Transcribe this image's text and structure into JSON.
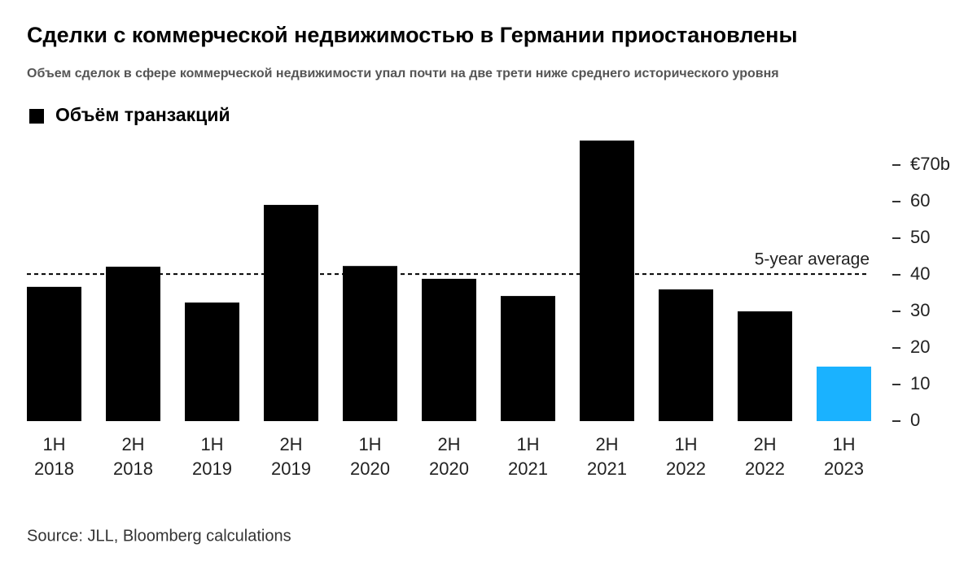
{
  "chart_data": {
    "type": "bar",
    "title": "Сделки с коммерческой недвижимостью в Германии приостановлены",
    "subtitle": "Объем сделок в сфере коммерческой недвижимости упал почти на две трети ниже среднего исторического уровня",
    "source": "Source: JLL, Bloomberg calculations",
    "categories": [
      "1H 2018",
      "2H 2018",
      "1H 2019",
      "2H 2019",
      "1H 2020",
      "2H 2020",
      "1H 2021",
      "2H 2021",
      "1H 2022",
      "2H 2022",
      "1H 2023"
    ],
    "series": [
      {
        "name": "Объём транзакций",
        "color": "#000000",
        "colors": [
          "#000000",
          "#000000",
          "#000000",
          "#000000",
          "#000000",
          "#000000",
          "#000000",
          "#000000",
          "#000000",
          "#000000",
          "#1ab2ff"
        ],
        "values": [
          36.7,
          42.2,
          32.4,
          59.1,
          42.4,
          38.9,
          34.2,
          76.7,
          36,
          30,
          14.9
        ]
      }
    ],
    "reference_line": {
      "label": "5-year average",
      "value": 40.2
    },
    "ylim": [
      0,
      78
    ],
    "yticks": [
      0,
      10,
      20,
      30,
      40,
      50,
      60,
      {
        "value": 70,
        "label": "€70b"
      }
    ]
  }
}
